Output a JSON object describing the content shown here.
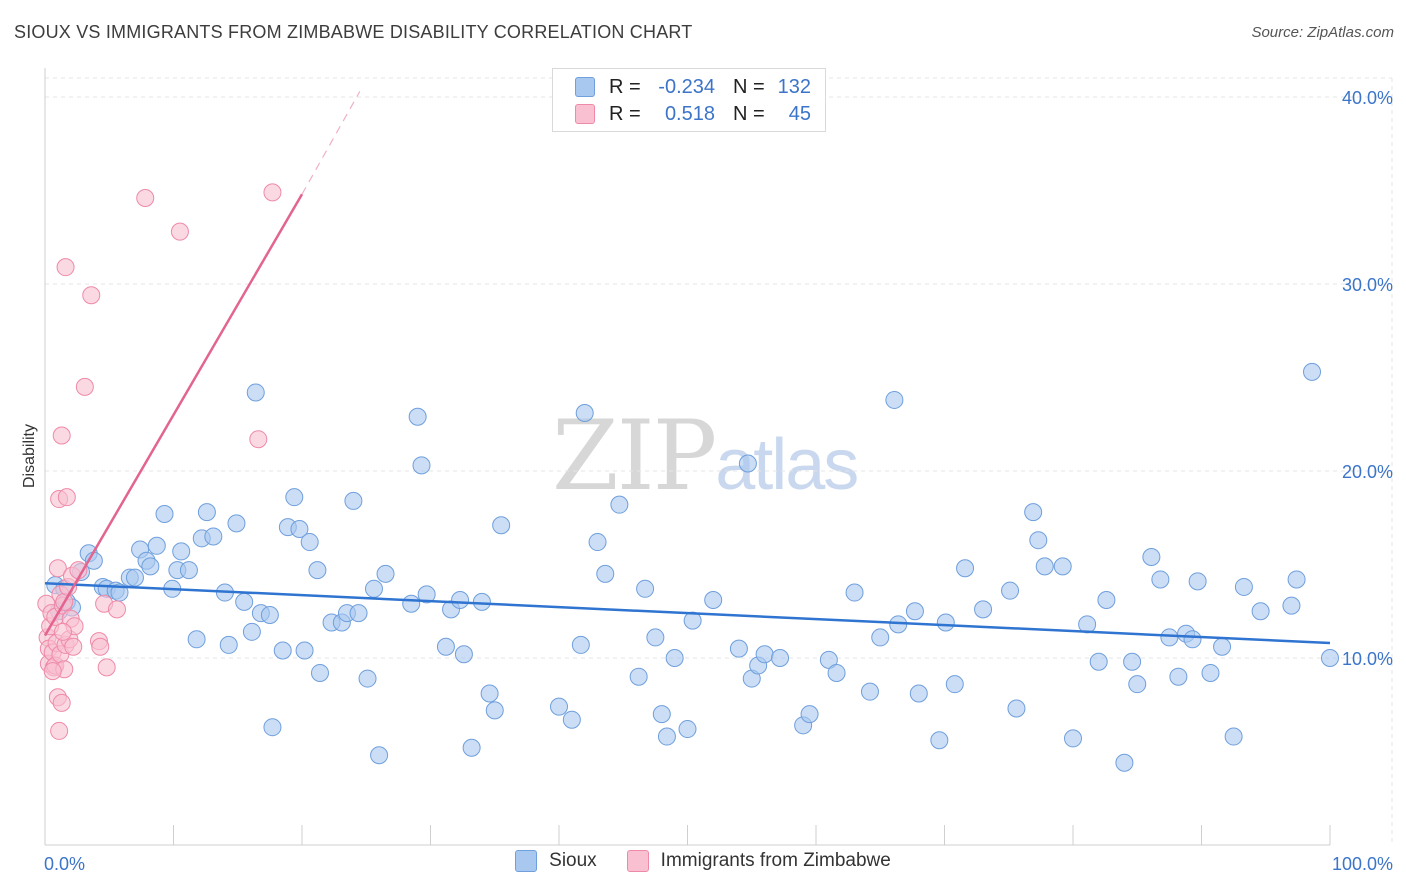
{
  "header": {
    "title": "SIOUX VS IMMIGRANTS FROM ZIMBABWE DISABILITY CORRELATION CHART",
    "source": "Source: ZipAtlas.com"
  },
  "watermark": {
    "zip": "ZIP",
    "atlas": "atlas"
  },
  "legend": {
    "rows": [
      {
        "r_label": "R =",
        "r_value": "-0.234",
        "n_label": "N =",
        "n_value": "132"
      },
      {
        "r_label": "R =",
        "r_value": "0.518",
        "n_label": "N =",
        "n_value": "45"
      }
    ]
  },
  "bottom_legend": {
    "series_a": "Sioux",
    "series_b": "Immigrants from Zimbabwe"
  },
  "colors": {
    "sioux_fill": "#a8c8f0",
    "sioux_stroke": "#6f9fdc",
    "sioux_line": "#2f74d0",
    "zim_fill": "#f8c0d0",
    "zim_stroke": "#ee8aa8",
    "zim_line": "#e3648f",
    "axis_label": "#3b74c9",
    "grid": "#e4e4e4"
  },
  "chart_data": {
    "type": "scatter",
    "title": "SIOUX VS IMMIGRANTS FROM ZIMBABWE DISABILITY CORRELATION CHART",
    "xlabel": "",
    "ylabel": "Disability",
    "xlim": [
      0,
      100
    ],
    "ylim": [
      0,
      42
    ],
    "x_tick_labels": [
      "0.0%",
      "100.0%"
    ],
    "y_ticks": [
      10,
      20,
      30,
      40
    ],
    "y_tick_labels": [
      "10.0%",
      "20.0%",
      "30.0%",
      "40.0%"
    ],
    "series": [
      {
        "name": "Sioux",
        "trend": {
          "x": [
            0,
            100
          ],
          "y": [
            14.0,
            10.8
          ]
        },
        "points": [
          [
            0.8,
            13.9
          ],
          [
            1.1,
            12.5
          ],
          [
            1.5,
            13.7
          ],
          [
            1.7,
            13.0
          ],
          [
            2.1,
            12.7
          ],
          [
            2.8,
            14.6
          ],
          [
            3.4,
            15.6
          ],
          [
            3.8,
            15.2
          ],
          [
            4.5,
            13.8
          ],
          [
            4.8,
            13.7
          ],
          [
            5.5,
            13.6
          ],
          [
            5.8,
            13.5
          ],
          [
            6.6,
            14.3
          ],
          [
            7.0,
            14.3
          ],
          [
            7.4,
            15.8
          ],
          [
            7.9,
            15.2
          ],
          [
            8.2,
            14.9
          ],
          [
            8.7,
            16.0
          ],
          [
            9.3,
            17.7
          ],
          [
            9.9,
            13.7
          ],
          [
            10.3,
            14.7
          ],
          [
            10.6,
            15.7
          ],
          [
            11.2,
            14.7
          ],
          [
            11.8,
            11.0
          ],
          [
            12.2,
            16.4
          ],
          [
            12.6,
            17.8
          ],
          [
            13.1,
            16.5
          ],
          [
            14.0,
            13.5
          ],
          [
            14.3,
            10.7
          ],
          [
            14.9,
            17.2
          ],
          [
            15.5,
            13.0
          ],
          [
            16.1,
            11.4
          ],
          [
            16.4,
            24.2
          ],
          [
            16.8,
            12.4
          ],
          [
            17.5,
            12.3
          ],
          [
            17.7,
            6.3
          ],
          [
            18.5,
            10.4
          ],
          [
            18.9,
            17.0
          ],
          [
            19.4,
            18.6
          ],
          [
            19.8,
            16.9
          ],
          [
            20.2,
            10.4
          ],
          [
            20.6,
            16.2
          ],
          [
            21.2,
            14.7
          ],
          [
            21.4,
            9.2
          ],
          [
            22.3,
            11.9
          ],
          [
            23.1,
            11.9
          ],
          [
            23.5,
            12.4
          ],
          [
            24.0,
            18.4
          ],
          [
            24.4,
            12.4
          ],
          [
            25.1,
            8.9
          ],
          [
            25.6,
            13.7
          ],
          [
            26.0,
            4.8
          ],
          [
            26.5,
            14.5
          ],
          [
            28.5,
            12.9
          ],
          [
            29.0,
            22.9
          ],
          [
            29.3,
            20.3
          ],
          [
            29.7,
            13.4
          ],
          [
            31.2,
            10.6
          ],
          [
            31.6,
            12.6
          ],
          [
            32.3,
            13.1
          ],
          [
            32.6,
            10.2
          ],
          [
            33.2,
            5.2
          ],
          [
            34.0,
            13.0
          ],
          [
            34.6,
            8.1
          ],
          [
            35.0,
            7.2
          ],
          [
            35.5,
            17.1
          ],
          [
            40.0,
            7.4
          ],
          [
            41.0,
            6.7
          ],
          [
            41.7,
            10.7
          ],
          [
            42.0,
            23.1
          ],
          [
            43.0,
            16.2
          ],
          [
            43.6,
            14.5
          ],
          [
            44.7,
            18.2
          ],
          [
            46.2,
            9.0
          ],
          [
            46.7,
            13.7
          ],
          [
            47.5,
            11.1
          ],
          [
            48.0,
            7.0
          ],
          [
            48.4,
            5.8
          ],
          [
            49.0,
            10.0
          ],
          [
            50.0,
            6.2
          ],
          [
            50.4,
            12.0
          ],
          [
            52.0,
            13.1
          ],
          [
            54.0,
            10.5
          ],
          [
            54.7,
            20.4
          ],
          [
            55.0,
            8.9
          ],
          [
            55.5,
            9.6
          ],
          [
            56.0,
            10.2
          ],
          [
            57.2,
            10.0
          ],
          [
            59.0,
            6.4
          ],
          [
            59.5,
            7.0
          ],
          [
            61.0,
            9.9
          ],
          [
            61.6,
            9.2
          ],
          [
            63.0,
            13.5
          ],
          [
            64.2,
            8.2
          ],
          [
            65.0,
            11.1
          ],
          [
            66.1,
            23.8
          ],
          [
            66.4,
            11.8
          ],
          [
            67.7,
            12.5
          ],
          [
            68.0,
            8.1
          ],
          [
            69.6,
            5.6
          ],
          [
            70.1,
            11.9
          ],
          [
            70.8,
            8.6
          ],
          [
            71.6,
            14.8
          ],
          [
            73.0,
            12.6
          ],
          [
            75.1,
            13.6
          ],
          [
            75.6,
            7.3
          ],
          [
            76.9,
            17.8
          ],
          [
            77.3,
            16.3
          ],
          [
            77.8,
            14.9
          ],
          [
            79.2,
            14.9
          ],
          [
            80.0,
            5.7
          ],
          [
            81.1,
            11.8
          ],
          [
            82.0,
            9.8
          ],
          [
            82.6,
            13.1
          ],
          [
            84.0,
            4.4
          ],
          [
            84.6,
            9.8
          ],
          [
            85.0,
            8.6
          ],
          [
            86.1,
            15.4
          ],
          [
            86.8,
            14.2
          ],
          [
            87.5,
            11.1
          ],
          [
            88.2,
            9.0
          ],
          [
            88.8,
            11.3
          ],
          [
            89.3,
            11.0
          ],
          [
            89.7,
            14.1
          ],
          [
            90.7,
            9.2
          ],
          [
            91.6,
            10.6
          ],
          [
            92.5,
            5.8
          ],
          [
            93.3,
            13.8
          ],
          [
            94.6,
            12.5
          ],
          [
            97.0,
            12.8
          ],
          [
            97.4,
            14.2
          ],
          [
            98.6,
            25.3
          ],
          [
            100.0,
            10.0
          ]
        ]
      },
      {
        "name": "Immigrants from Zimbabwe",
        "trend": {
          "x": [
            0,
            20
          ],
          "y": [
            11.2,
            34.8
          ]
        },
        "trend_dashed": {
          "x": [
            20,
            24.5
          ],
          "y": [
            34.8,
            40.3
          ]
        },
        "points": [
          [
            0.1,
            12.9
          ],
          [
            0.2,
            11.1
          ],
          [
            0.3,
            10.5
          ],
          [
            0.3,
            9.7
          ],
          [
            0.4,
            11.7
          ],
          [
            0.5,
            12.4
          ],
          [
            0.6,
            10.3
          ],
          [
            0.7,
            9.5
          ],
          [
            0.8,
            12.2
          ],
          [
            0.8,
            9.6
          ],
          [
            0.9,
            10.8
          ],
          [
            1.0,
            7.9
          ],
          [
            1.0,
            14.8
          ],
          [
            1.1,
            18.5
          ],
          [
            1.1,
            6.1
          ],
          [
            1.2,
            13.4
          ],
          [
            1.2,
            10.2
          ],
          [
            1.3,
            21.9
          ],
          [
            1.3,
            7.6
          ],
          [
            1.4,
            12.8
          ],
          [
            1.5,
            13.0
          ],
          [
            1.5,
            9.4
          ],
          [
            1.6,
            10.7
          ],
          [
            1.6,
            30.9
          ],
          [
            1.7,
            18.6
          ],
          [
            1.8,
            13.8
          ],
          [
            1.9,
            11.0
          ],
          [
            2.0,
            12.1
          ],
          [
            2.1,
            14.4
          ],
          [
            2.2,
            10.6
          ],
          [
            2.3,
            11.7
          ],
          [
            2.6,
            14.7
          ],
          [
            3.1,
            24.5
          ],
          [
            3.6,
            29.4
          ],
          [
            4.2,
            10.9
          ],
          [
            4.3,
            10.6
          ],
          [
            4.6,
            12.9
          ],
          [
            4.8,
            9.5
          ],
          [
            5.6,
            12.6
          ],
          [
            7.8,
            34.6
          ],
          [
            10.5,
            32.8
          ],
          [
            16.6,
            21.7
          ],
          [
            17.7,
            34.9
          ],
          [
            0.6,
            9.3
          ],
          [
            1.4,
            11.4
          ]
        ]
      }
    ]
  }
}
